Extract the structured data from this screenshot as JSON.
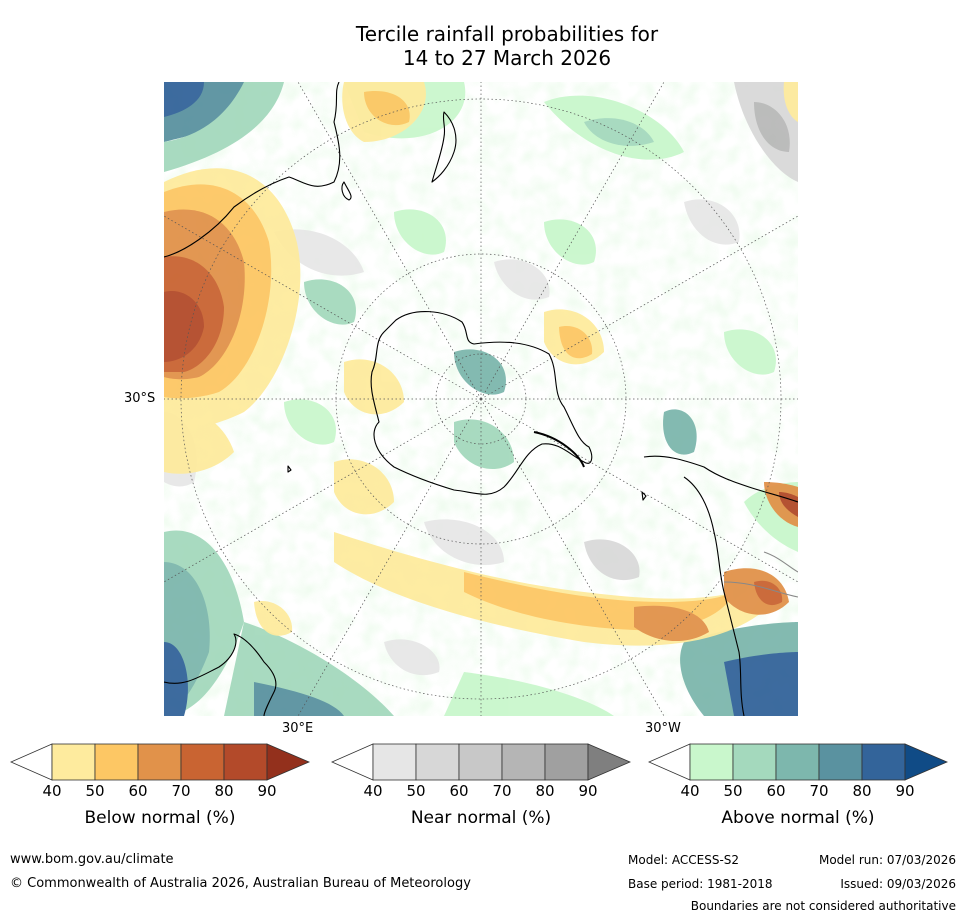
{
  "title": {
    "line1": "Tercile rainfall probabilities for",
    "line2": "14 to 27 March 2026"
  },
  "map": {
    "projection": "south-polar stereographic",
    "axis_labels": {
      "left": "30°S",
      "bottom_east": "30°E",
      "bottom_west": "30°W"
    }
  },
  "colorbars": [
    {
      "name": "below",
      "title": "Below normal (%)",
      "ticks": [
        "40",
        "50",
        "60",
        "70",
        "80",
        "90"
      ],
      "colors": [
        "#ffffff",
        "#feeb9e",
        "#fdc764",
        "#e1924a",
        "#c96432",
        "#b34a2a",
        "#93301c"
      ]
    },
    {
      "name": "near",
      "title": "Near normal (%)",
      "ticks": [
        "40",
        "50",
        "60",
        "70",
        "80",
        "90"
      ],
      "colors": [
        "#ffffff",
        "#e6e6e6",
        "#d7d7d7",
        "#c8c8c8",
        "#b5b5b5",
        "#a0a0a0",
        "#7f7f7f"
      ]
    },
    {
      "name": "above",
      "title": "Above normal (%)",
      "ticks": [
        "40",
        "50",
        "60",
        "70",
        "80",
        "90"
      ],
      "colors": [
        "#ffffff",
        "#c9f7cc",
        "#a4d9bd",
        "#7db7ad",
        "#5a92a0",
        "#33649a",
        "#104b86"
      ]
    }
  ],
  "footer": {
    "website": "www.bom.gov.au/climate",
    "copyright": "© Commonwealth of Australia 2026, Australian Bureau of Meteorology",
    "model": "Model: ACCESS-S2",
    "model_run": "Model run: 07/03/2026",
    "base_period": "Base period: 1981-2018",
    "issued": "Issued: 09/03/2026",
    "disclaimer": "Boundaries are not considered authoritative"
  }
}
